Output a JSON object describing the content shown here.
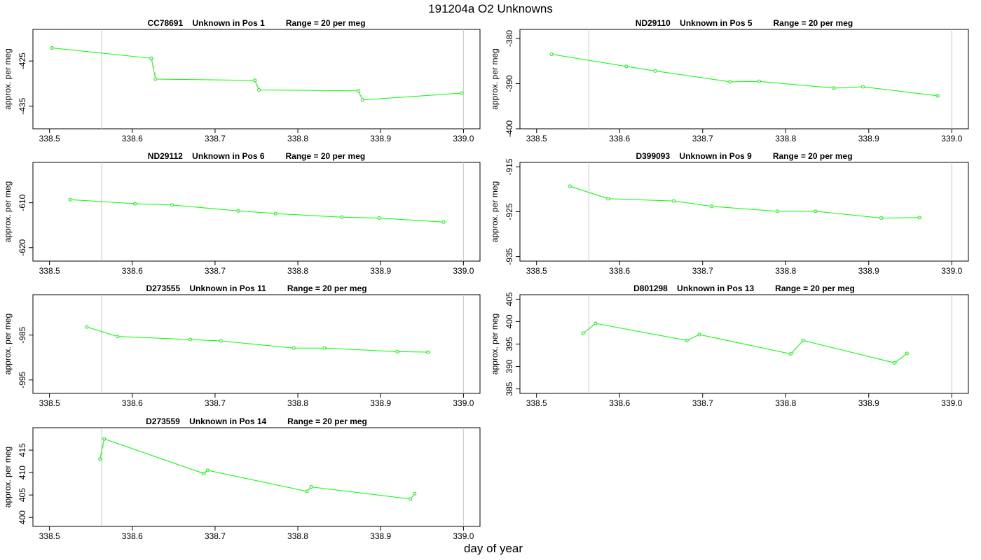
{
  "title": "191204a  O2 Unknowns",
  "xlabel": "day of year",
  "series_color": "#00ff00",
  "marker_line_color": "#c8c8c8",
  "chart_data": [
    {
      "type": "line",
      "title": "CC78691    Unknown in Pos 1         Range = 20 per meg",
      "ylabel": "approx. per meg",
      "xlim": [
        338.48,
        339.02
      ],
      "ylim": [
        -440,
        -418
      ],
      "x_ticks": [
        338.5,
        338.6,
        338.7,
        338.8,
        338.9,
        339.0
      ],
      "y_ticks": [
        -425,
        -435
      ],
      "vline": 338.563,
      "x": [
        338.503,
        338.623,
        338.628,
        338.748,
        338.753,
        338.873,
        338.878,
        338.998
      ],
      "y": [
        -422.1,
        -424.4,
        -429.0,
        -429.3,
        -431.4,
        -431.6,
        -433.6,
        -432.1
      ]
    },
    {
      "type": "line",
      "title": "ND29110    Unknown in Pos 5         Range = 20 per meg",
      "ylabel": "approx. per meg",
      "xlim": [
        338.48,
        339.02
      ],
      "ylim": [
        -400,
        -378
      ],
      "x_ticks": [
        338.5,
        338.6,
        338.7,
        338.8,
        338.9,
        339.0
      ],
      "y_ticks": [
        -380,
        -390,
        -400
      ],
      "vline": 338.563,
      "x": [
        338.518,
        338.608,
        338.643,
        338.733,
        338.768,
        338.858,
        338.893,
        338.983
      ],
      "y": [
        -383.5,
        -386.2,
        -387.2,
        -389.6,
        -389.5,
        -391.0,
        -390.7,
        -392.7
      ]
    },
    {
      "type": "line",
      "title": "ND29112    Unknown in Pos 6         Range = 20 per meg",
      "ylabel": "approx. per meg",
      "xlim": [
        338.48,
        339.02
      ],
      "ylim": [
        -623,
        -601
      ],
      "x_ticks": [
        338.5,
        338.6,
        338.7,
        338.8,
        338.9,
        339.0
      ],
      "y_ticks": [
        -610,
        -620
      ],
      "vline": 338.563,
      "x": [
        338.525,
        338.603,
        338.648,
        338.728,
        338.773,
        338.853,
        338.898,
        338.976
      ],
      "y": [
        -609.3,
        -610.2,
        -610.5,
        -611.8,
        -612.4,
        -613.2,
        -613.4,
        -614.3
      ]
    },
    {
      "type": "line",
      "title": "D399093    Unknown in Pos 9         Range = 20 per meg",
      "ylabel": "approx. per meg",
      "xlim": [
        338.48,
        339.02
      ],
      "ylim": [
        -936,
        -914
      ],
      "x_ticks": [
        338.5,
        338.6,
        338.7,
        338.8,
        338.9,
        339.0
      ],
      "y_ticks": [
        -915,
        -925,
        -935
      ],
      "vline": 338.563,
      "x": [
        338.54,
        338.586,
        338.665,
        338.711,
        338.79,
        338.836,
        338.915,
        338.961
      ],
      "y": [
        -919.3,
        -922.1,
        -922.6,
        -923.8,
        -924.9,
        -924.9,
        -926.4,
        -926.3
      ]
    },
    {
      "type": "line",
      "title": "D273555    Unknown in Pos 11         Range = 20 per meg",
      "ylabel": "approx. per meg",
      "xlim": [
        338.48,
        339.02
      ],
      "ylim": [
        -998,
        -976
      ],
      "x_ticks": [
        338.5,
        338.6,
        338.7,
        338.8,
        338.9,
        339.0
      ],
      "y_ticks": [
        -985,
        -995
      ],
      "vline": 338.563,
      "x": [
        338.545,
        338.582,
        338.67,
        338.707,
        338.795,
        338.832,
        338.92,
        338.957
      ],
      "y": [
        -983.2,
        -985.3,
        -986.0,
        -986.3,
        -987.9,
        -987.9,
        -988.7,
        -988.8
      ]
    },
    {
      "type": "line",
      "title": "D801298    Unknown in Pos 13         Range = 20 per meg",
      "ylabel": "approx. per meg",
      "xlim": [
        338.48,
        339.02
      ],
      "ylim": [
        384,
        406
      ],
      "x_ticks": [
        338.5,
        338.6,
        338.7,
        338.8,
        338.9,
        339.0
      ],
      "y_ticks": [
        385,
        390,
        395,
        400,
        405
      ],
      "vline": 338.563,
      "x": [
        338.556,
        338.571,
        338.681,
        338.696,
        338.806,
        338.821,
        338.931,
        338.946
      ],
      "y": [
        397.4,
        399.6,
        395.8,
        397.1,
        392.8,
        395.8,
        390.8,
        392.9
      ]
    },
    {
      "type": "line",
      "title": "D273559    Unknown in Pos 14         Range = 20 per meg",
      "ylabel": "approx. per meg",
      "xlim": [
        338.48,
        339.02
      ],
      "ylim": [
        398,
        420
      ],
      "x_ticks": [
        338.5,
        338.6,
        338.7,
        338.8,
        338.9,
        339.0
      ],
      "y_ticks": [
        400,
        405,
        410,
        415
      ],
      "vline": 338.563,
      "x": [
        338.561,
        338.566,
        338.686,
        338.691,
        338.811,
        338.816,
        338.936,
        338.941
      ],
      "y": [
        413.0,
        417.5,
        409.8,
        410.5,
        405.8,
        406.8,
        404.1,
        405.3
      ]
    }
  ]
}
